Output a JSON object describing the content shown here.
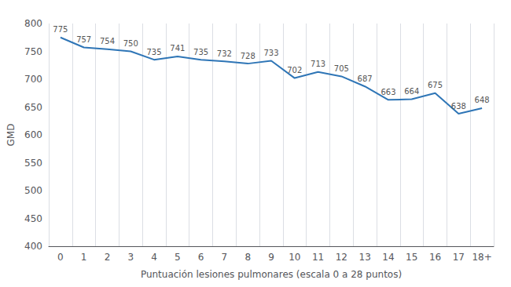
{
  "chart_data": {
    "type": "line",
    "categories": [
      "0",
      "1",
      "2",
      "3",
      "4",
      "5",
      "6",
      "7",
      "8",
      "9",
      "10",
      "11",
      "12",
      "13",
      "14",
      "15",
      "16",
      "17",
      "18+"
    ],
    "values": [
      775,
      757,
      754,
      750,
      735,
      741,
      735,
      732,
      728,
      733,
      702,
      713,
      705,
      687,
      663,
      664,
      675,
      638,
      648
    ],
    "color": "#2E75B6",
    "xlabel": "Puntuación lesiones pulmonares (escala 0 a 28 puntos)",
    "ylabel": "GMD",
    "ylim": [
      400,
      800
    ],
    "yticks": [
      400,
      450,
      500,
      550,
      600,
      650,
      700,
      750,
      800
    ],
    "grid": "x",
    "data_labels": true
  }
}
